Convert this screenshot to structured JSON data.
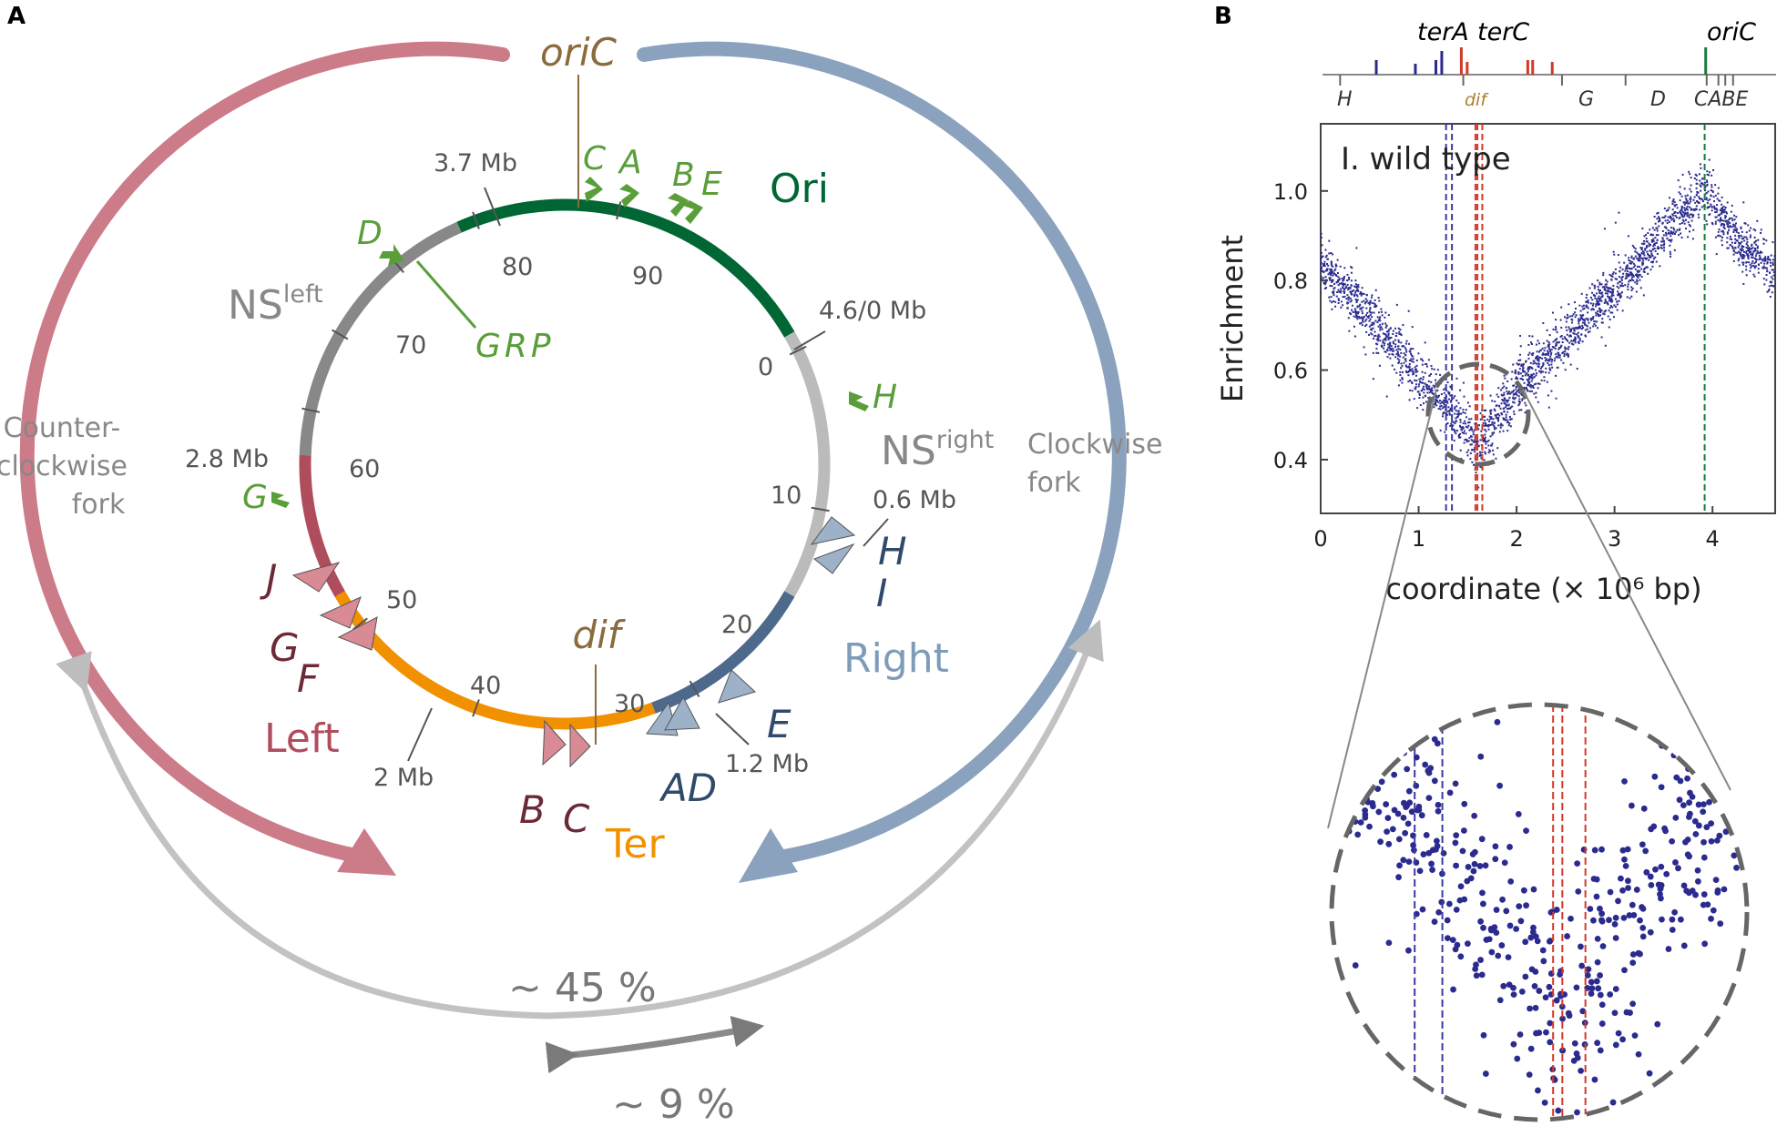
{
  "panel_a": {
    "label": "A",
    "oric": "oriC",
    "dif": "dif",
    "regions": {
      "ori": "Ori",
      "ns_left": "NS",
      "ns_left_sup": "left",
      "ns_right": "NS",
      "ns_right_sup": "right",
      "right": "Right",
      "left": "Left",
      "ter": "Ter"
    },
    "forks": {
      "ccw_line1": "Counter-",
      "ccw_line2": "clockwise",
      "ccw_line3": "fork",
      "cw_line1": "Clockwise",
      "cw_line2": "fork"
    },
    "percent_big": "~ 45 %",
    "percent_small": "~ 9 %",
    "mb": {
      "m37": "3.7 Mb",
      "m46": "4.6/0 Mb",
      "m28": "2.8 Mb",
      "m06": "0.6 Mb",
      "m2": "2 Mb",
      "m12": "1.2 Mb"
    },
    "ticks": {
      "t0": "0",
      "t10": "10",
      "t20": "20",
      "t30": "30",
      "t40": "40",
      "t50": "50",
      "t60": "60",
      "t70": "70",
      "t80": "80",
      "t90": "90"
    },
    "rrn": {
      "c": "C",
      "a": "A",
      "b": "B",
      "e": "E",
      "d": "D",
      "grp": "GRP",
      "h": "H",
      "g": "G"
    },
    "ter_sites": {
      "h": "H",
      "i": "I",
      "e": "E",
      "ad": "AD",
      "b": "B",
      "c": "C",
      "g": "G",
      "f": "F",
      "j": "J"
    },
    "colors": {
      "ori": "#006633",
      "ns": "#888888",
      "ns_right": "#bbbbbb",
      "right": "#4d6a8c",
      "left": "#b04d5d",
      "ter": "#f29100",
      "rrn": "#5a9e3a",
      "fork_left": "#cc7b88",
      "fork_right": "#8aa2bd",
      "ter_left_tri": "#d88a95",
      "ter_right_tri": "#9db2c8"
    }
  },
  "panel_b": {
    "label": "B",
    "track_top": {
      "tera": "terA",
      "terc": "terC",
      "oric": "oriC"
    },
    "track_bottom": {
      "h": "H",
      "dif": "dif",
      "g": "G",
      "d": "D",
      "cabe": "CABE"
    },
    "colors": {
      "blue": "#2b2b8f",
      "red": "#d23a2a",
      "green": "#1a7a3a",
      "dif": "#b07d2a"
    }
  },
  "chart_data": {
    "type": "scatter",
    "title": "I. wild type",
    "xlabel": "coordinate (× 10⁶ bp)",
    "ylabel": "Enrichment",
    "xlim": [
      0,
      4.64
    ],
    "ylim": [
      0.28,
      1.15
    ],
    "xticks": [
      "0",
      "1",
      "2",
      "3",
      "4"
    ],
    "yticks": [
      "0.4",
      "0.6",
      "0.8",
      "1.0"
    ],
    "x_tick_values": [
      0,
      1,
      2,
      3,
      4
    ],
    "y_tick_values": [
      0.4,
      0.6,
      0.8,
      1.0
    ],
    "reference_lines": [
      {
        "name": "terA",
        "x": 1.28,
        "color": "#3a3aa0"
      },
      {
        "name": "terA-2",
        "x": 1.34,
        "color": "#3a3aa0"
      },
      {
        "name": "terC",
        "x": 1.6,
        "color": "#d23a2a"
      },
      {
        "name": "dif",
        "x": 1.58,
        "color": "#d23a2a"
      },
      {
        "name": "terC-2",
        "x": 1.65,
        "color": "#d23a2a"
      },
      {
        "name": "oriC",
        "x": 3.92,
        "color": "#1a7a3a"
      }
    ],
    "profile": {
      "points": [
        {
          "x": 0.0,
          "y": 0.84
        },
        {
          "x": 0.5,
          "y": 0.72
        },
        {
          "x": 1.0,
          "y": 0.58
        },
        {
          "x": 1.3,
          "y": 0.52
        },
        {
          "x": 1.6,
          "y": 0.43
        },
        {
          "x": 2.0,
          "y": 0.56
        },
        {
          "x": 3.0,
          "y": 0.78
        },
        {
          "x": 3.5,
          "y": 0.9
        },
        {
          "x": 3.92,
          "y": 1.0
        },
        {
          "x": 4.3,
          "y": 0.88
        },
        {
          "x": 4.64,
          "y": 0.82
        }
      ],
      "scatter_sd": 0.03,
      "n_points": 2600
    },
    "zoom_window": {
      "x": [
        1.1,
        2.0
      ],
      "y": [
        0.38,
        0.58
      ]
    }
  }
}
